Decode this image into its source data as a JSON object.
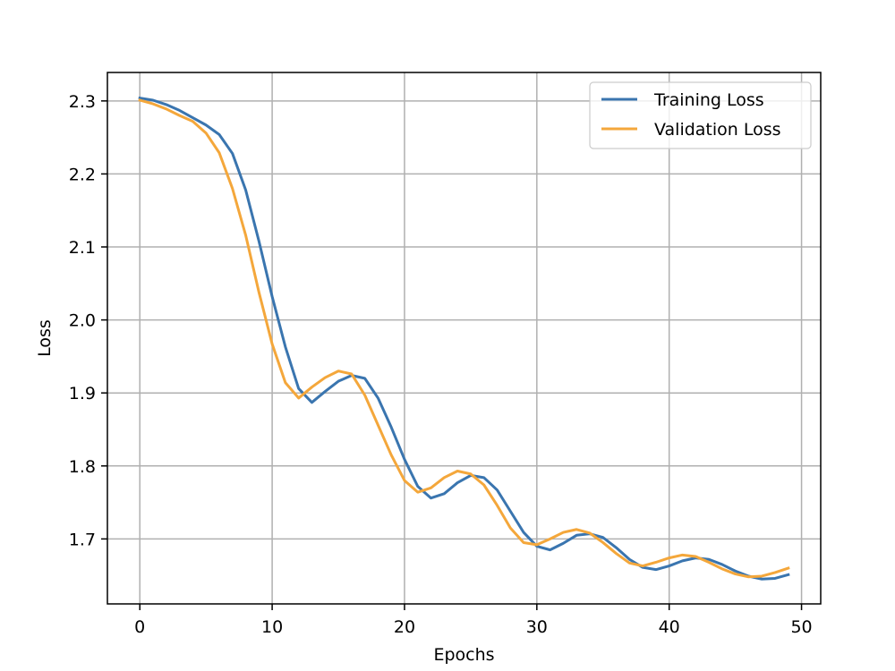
{
  "chart_data": {
    "type": "line",
    "title": "",
    "xlabel": "Epochs",
    "ylabel": "Loss",
    "xlim": [
      -2.45,
      51.45
    ],
    "ylim": [
      1.611,
      2.339
    ],
    "xticks": [
      0,
      10,
      20,
      30,
      40,
      50
    ],
    "yticks": [
      1.7,
      1.8,
      1.9,
      2.0,
      2.1,
      2.2,
      2.3
    ],
    "grid": true,
    "legend_position": "top-right",
    "x": [
      0,
      1,
      2,
      3,
      4,
      5,
      6,
      7,
      8,
      9,
      10,
      11,
      12,
      13,
      14,
      15,
      16,
      17,
      18,
      19,
      20,
      21,
      22,
      23,
      24,
      25,
      26,
      27,
      28,
      29,
      30,
      31,
      32,
      33,
      34,
      35,
      36,
      37,
      38,
      39,
      40,
      41,
      42,
      43,
      44,
      45,
      46,
      47,
      48,
      49
    ],
    "series": [
      {
        "name": "Training Loss",
        "color": "#3a75af",
        "values": [
          2.304,
          2.301,
          2.295,
          2.287,
          2.277,
          2.267,
          2.254,
          2.228,
          2.178,
          2.108,
          2.032,
          1.963,
          1.906,
          1.887,
          1.902,
          1.916,
          1.924,
          1.92,
          1.893,
          1.853,
          1.809,
          1.772,
          1.756,
          1.762,
          1.777,
          1.787,
          1.784,
          1.767,
          1.738,
          1.709,
          1.69,
          1.685,
          1.694,
          1.705,
          1.707,
          1.702,
          1.688,
          1.672,
          1.661,
          1.658,
          1.663,
          1.67,
          1.674,
          1.672,
          1.665,
          1.656,
          1.649,
          1.645,
          1.646,
          1.651
        ]
      },
      {
        "name": "Validation Loss",
        "color": "#f4a73b",
        "values": [
          2.301,
          2.296,
          2.289,
          2.28,
          2.272,
          2.256,
          2.229,
          2.18,
          2.116,
          2.038,
          1.967,
          1.914,
          1.893,
          1.908,
          1.921,
          1.93,
          1.926,
          1.897,
          1.856,
          1.815,
          1.78,
          1.764,
          1.77,
          1.784,
          1.793,
          1.789,
          1.774,
          1.746,
          1.715,
          1.695,
          1.692,
          1.7,
          1.709,
          1.713,
          1.708,
          1.695,
          1.68,
          1.667,
          1.663,
          1.668,
          1.674,
          1.678,
          1.676,
          1.668,
          1.659,
          1.652,
          1.648,
          1.649,
          1.654,
          1.66
        ]
      }
    ]
  }
}
